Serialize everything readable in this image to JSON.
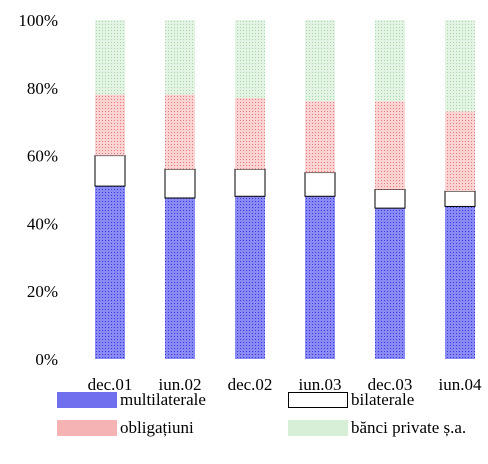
{
  "chart_data": {
    "type": "bar",
    "stacked": true,
    "categories": [
      "dec.01",
      "iun.02",
      "dec.02",
      "iun.03",
      "dec.03",
      "iun.04"
    ],
    "series": [
      {
        "name": "multilaterale",
        "values": [
          51,
          47.5,
          48,
          48,
          44.5,
          45
        ],
        "color": "#6f6ff0",
        "pattern": "dense-dots"
      },
      {
        "name": "bilaterale",
        "values": [
          9,
          8.5,
          8,
          7,
          5.5,
          4.5
        ],
        "color": "#ffffff",
        "pattern": "none"
      },
      {
        "name": "obligațiuni",
        "values": [
          18,
          22,
          21,
          21,
          26,
          23.5
        ],
        "color": "#f4a6a6",
        "pattern": "dense-dots"
      },
      {
        "name": "bănci private ș.a.",
        "values": [
          22,
          22,
          23,
          24,
          24,
          27
        ],
        "color": "#cfeccf",
        "pattern": "dense-dots"
      }
    ],
    "ylim": [
      0,
      100
    ],
    "yticks": [
      "0%",
      "20%",
      "40%",
      "60%",
      "80%",
      "100%"
    ],
    "legend_position": "bottom",
    "grid": false
  }
}
